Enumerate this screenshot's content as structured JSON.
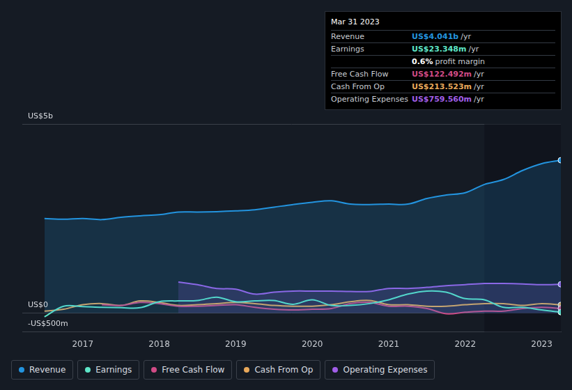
{
  "chart_data": {
    "type": "line",
    "x": [
      2016.5,
      2016.75,
      2017.0,
      2017.25,
      2017.5,
      2017.75,
      2018.0,
      2018.25,
      2018.5,
      2018.75,
      2019.0,
      2019.25,
      2019.5,
      2019.75,
      2020.0,
      2020.25,
      2020.5,
      2020.75,
      2021.0,
      2021.25,
      2021.5,
      2021.75,
      2022.0,
      2022.25,
      2022.5,
      2022.75,
      2023.0,
      2023.25
    ],
    "xlim": [
      2016.21,
      2023.25
    ],
    "xticks": [
      2017,
      2018,
      2019,
      2020,
      2021,
      2022,
      2023
    ],
    "ylim": [
      -0.5,
      5
    ],
    "yticks": [
      {
        "value": -0.5,
        "label": "-US$500m"
      },
      {
        "value": 0,
        "label": "US$0"
      },
      {
        "value": 5,
        "label": "US$5b"
      }
    ],
    "grid": true,
    "legend": "bottom-left",
    "series": [
      {
        "name": "Revenue",
        "color": "#2394df",
        "values": [
          2.5,
          2.48,
          2.5,
          2.47,
          2.53,
          2.57,
          2.6,
          2.67,
          2.67,
          2.68,
          2.7,
          2.73,
          2.8,
          2.87,
          2.93,
          2.97,
          2.88,
          2.87,
          2.88,
          2.88,
          3.03,
          3.12,
          3.18,
          3.4,
          3.53,
          3.77,
          3.95,
          4.041
        ]
      },
      {
        "name": "Earnings",
        "color": "#5ee6c8",
        "values": [
          -0.1,
          0.18,
          0.17,
          0.15,
          0.14,
          0.14,
          0.3,
          0.32,
          0.33,
          0.42,
          0.3,
          0.32,
          0.33,
          0.23,
          0.35,
          0.2,
          0.2,
          0.25,
          0.35,
          0.5,
          0.58,
          0.55,
          0.38,
          0.35,
          0.15,
          0.15,
          0.08,
          0.023
        ]
      },
      {
        "name": "Free Cash Flow",
        "color": "#d14b86",
        "values": [
          null,
          null,
          null,
          0.22,
          0.2,
          0.28,
          0.25,
          0.18,
          0.18,
          0.2,
          0.22,
          0.15,
          0.1,
          0.08,
          0.1,
          0.12,
          0.25,
          0.28,
          0.18,
          0.18,
          0.12,
          -0.02,
          0.02,
          0.05,
          0.05,
          0.12,
          0.15,
          0.122
        ]
      },
      {
        "name": "Cash From Op",
        "color": "#e8a85a",
        "values": [
          0.05,
          0.1,
          0.22,
          0.25,
          0.2,
          0.32,
          0.28,
          0.2,
          0.22,
          0.25,
          0.28,
          0.25,
          0.2,
          0.18,
          0.18,
          0.22,
          0.3,
          0.33,
          0.22,
          0.22,
          0.18,
          0.18,
          0.22,
          0.25,
          0.25,
          0.2,
          0.25,
          0.214
        ]
      },
      {
        "name": "Operating Expenses",
        "color": "#a15ee8",
        "values": [
          null,
          null,
          null,
          null,
          null,
          null,
          null,
          0.82,
          0.75,
          0.65,
          0.63,
          0.5,
          0.55,
          0.58,
          0.58,
          0.58,
          0.57,
          0.57,
          0.65,
          0.65,
          0.68,
          0.72,
          0.75,
          0.78,
          0.78,
          0.77,
          0.75,
          0.76
        ]
      }
    ],
    "annotation": {
      "title": "Mar 31 2023",
      "rows": [
        {
          "label": "Revenue",
          "value": "US$4.041b",
          "unit": "/yr",
          "color": "#2394df"
        },
        {
          "label": "Earnings",
          "value": "US$23.348m",
          "unit": "/yr",
          "color": "#5ee6c8"
        },
        {
          "label": "",
          "value": "0.6%",
          "unit": "profit margin",
          "color": "#ffffff"
        },
        {
          "label": "Free Cash Flow",
          "value": "US$122.492m",
          "unit": "/yr",
          "color": "#d14b86"
        },
        {
          "label": "Cash From Op",
          "value": "US$213.523m",
          "unit": "/yr",
          "color": "#e8a85a"
        },
        {
          "label": "Operating Expenses",
          "value": "US$759.560m",
          "unit": "/yr",
          "color": "#a15ee8"
        }
      ]
    }
  }
}
